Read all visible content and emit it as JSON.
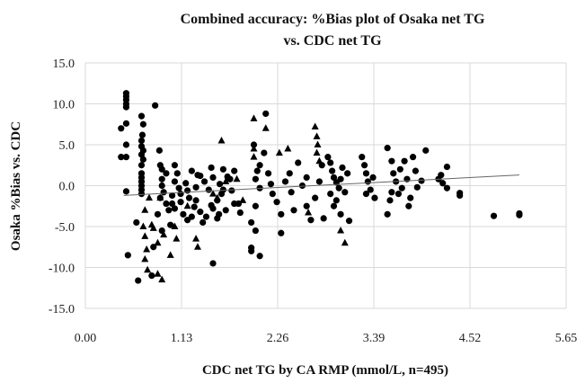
{
  "chart_data": {
    "type": "scatter",
    "title": [
      "Combined accuracy: %Bias plot of Osaka net TG",
      "vs. CDC net TG"
    ],
    "xlabel": "CDC net TG by CA RMP (mmol/L, n=495)",
    "ylabel": "Osaka %Bias vs. CDC",
    "xlim": [
      0,
      5.65
    ],
    "ylim": [
      -15,
      15
    ],
    "xticks": [
      "0.00",
      "1.13",
      "2.26",
      "3.39",
      "4.52",
      "5.65"
    ],
    "yticks": [
      "15.0",
      "10.0",
      "5.0",
      "0.0",
      "-5.0",
      "-10.0",
      "-15.0"
    ],
    "grid": true,
    "trendline": {
      "x": [
        0.45,
        5.1
      ],
      "y": [
        -1.2,
        1.3
      ]
    },
    "series": [
      {
        "name": "circle",
        "marker": "circle",
        "points": [
          [
            0.48,
            11.3
          ],
          [
            0.48,
            10.9
          ],
          [
            0.48,
            10.5
          ],
          [
            0.48,
            10.0
          ],
          [
            0.48,
            9.6
          ],
          [
            0.48,
            7.6
          ],
          [
            0.42,
            7.0
          ],
          [
            0.48,
            5.0
          ],
          [
            0.42,
            3.5
          ],
          [
            0.48,
            3.5
          ],
          [
            0.48,
            -0.7
          ],
          [
            0.5,
            -8.5
          ],
          [
            0.66,
            8.5
          ],
          [
            0.68,
            7.5
          ],
          [
            0.67,
            6.2
          ],
          [
            0.66,
            5.5
          ],
          [
            0.66,
            4.8
          ],
          [
            0.68,
            4.3
          ],
          [
            0.66,
            3.8
          ],
          [
            0.68,
            3.2
          ],
          [
            0.66,
            2.5
          ],
          [
            0.66,
            1.5
          ],
          [
            0.66,
            1.0
          ],
          [
            0.66,
            0.5
          ],
          [
            0.66,
            0.0
          ],
          [
            0.66,
            -0.5
          ],
          [
            0.66,
            -1.0
          ],
          [
            0.6,
            -4.5
          ],
          [
            0.62,
            -11.6
          ],
          [
            0.82,
            9.8
          ],
          [
            0.87,
            4.3
          ],
          [
            0.88,
            2.5
          ],
          [
            0.9,
            2.0
          ],
          [
            0.95,
            1.5
          ],
          [
            0.9,
            0.8
          ],
          [
            0.9,
            0.0
          ],
          [
            0.92,
            -0.8
          ],
          [
            0.88,
            -1.5
          ],
          [
            0.95,
            -2.2
          ],
          [
            0.98,
            -3.0
          ],
          [
            0.85,
            -3.5
          ],
          [
            0.9,
            -5.5
          ],
          [
            1.0,
            -4.8
          ],
          [
            0.8,
            -7.5
          ],
          [
            0.78,
            -11.0
          ],
          [
            1.05,
            2.5
          ],
          [
            1.08,
            1.5
          ],
          [
            1.05,
            0.5
          ],
          [
            1.1,
            -0.3
          ],
          [
            1.02,
            -1.2
          ],
          [
            1.12,
            -2.0
          ],
          [
            1.05,
            -2.8
          ],
          [
            1.15,
            -3.5
          ],
          [
            1.2,
            -4.2
          ],
          [
            1.12,
            -1.0
          ],
          [
            1.18,
            0.3
          ],
          [
            1.25,
            1.8
          ],
          [
            1.22,
            -1.5
          ],
          [
            1.28,
            -2.6
          ],
          [
            1.3,
            -0.2
          ],
          [
            1.35,
            1.2
          ],
          [
            1.4,
            0.5
          ],
          [
            1.35,
            -3.2
          ],
          [
            1.38,
            -4.5
          ],
          [
            1.5,
            -9.5
          ],
          [
            1.48,
            2.2
          ],
          [
            1.5,
            1.0
          ],
          [
            1.45,
            -0.5
          ],
          [
            1.55,
            -1.8
          ],
          [
            1.5,
            -2.8
          ],
          [
            1.58,
            0.2
          ],
          [
            1.6,
            -1.0
          ],
          [
            1.62,
            2.0
          ],
          [
            1.65,
            -3.0
          ],
          [
            1.7,
            0.8
          ],
          [
            1.72,
            -0.6
          ],
          [
            1.75,
            1.8
          ],
          [
            1.8,
            -2.2
          ],
          [
            1.32,
            1.3
          ],
          [
            1.3,
            -1.8
          ],
          [
            1.42,
            -3.8
          ],
          [
            1.48,
            -2.4
          ],
          [
            1.55,
            -4.0
          ],
          [
            1.25,
            -3.8
          ],
          [
            1.2,
            -0.6
          ],
          [
            1.02,
            -2.2
          ],
          [
            1.62,
            -0.5
          ],
          [
            1.67,
            1.1
          ],
          [
            1.57,
            -3.5
          ],
          [
            1.75,
            -2.2
          ],
          [
            1.82,
            -3.3
          ],
          [
            1.95,
            -7.6
          ],
          [
            1.95,
            -8.0
          ],
          [
            2.0,
            -5.5
          ],
          [
            2.05,
            -8.6
          ],
          [
            1.95,
            -4.5
          ],
          [
            2.0,
            -2.5
          ],
          [
            2.05,
            -0.3
          ],
          [
            2.0,
            0.8
          ],
          [
            2.02,
            1.8
          ],
          [
            2.05,
            2.5
          ],
          [
            2.1,
            4.0
          ],
          [
            1.98,
            5.0
          ],
          [
            2.12,
            8.8
          ],
          [
            2.15,
            1.5
          ],
          [
            2.18,
            0.2
          ],
          [
            2.2,
            -1.0
          ],
          [
            2.25,
            -2.0
          ],
          [
            2.3,
            -3.5
          ],
          [
            2.3,
            -5.8
          ],
          [
            2.35,
            0.5
          ],
          [
            2.4,
            1.5
          ],
          [
            2.42,
            -0.8
          ],
          [
            2.45,
            -3.0
          ],
          [
            2.5,
            2.8
          ],
          [
            2.55,
            0.0
          ],
          [
            2.6,
            -2.5
          ],
          [
            2.6,
            1.0
          ],
          [
            2.65,
            -4.2
          ],
          [
            2.7,
            -1.5
          ],
          [
            2.75,
            0.5
          ],
          [
            2.8,
            -4.0
          ],
          [
            2.78,
            2.5
          ],
          [
            2.85,
            3.5
          ],
          [
            2.88,
            2.8
          ],
          [
            2.9,
            1.8
          ],
          [
            2.92,
            1.0
          ],
          [
            2.95,
            0.4
          ],
          [
            2.98,
            -0.3
          ],
          [
            2.88,
            -1.0
          ],
          [
            2.95,
            -1.8
          ],
          [
            2.92,
            -2.5
          ],
          [
            3.0,
            -3.5
          ],
          [
            3.0,
            0.8
          ],
          [
            3.02,
            2.2
          ],
          [
            3.05,
            -0.8
          ],
          [
            3.08,
            1.5
          ],
          [
            3.1,
            -4.3
          ],
          [
            3.25,
            3.5
          ],
          [
            3.28,
            2.5
          ],
          [
            3.3,
            1.5
          ],
          [
            3.32,
            0.5
          ],
          [
            3.35,
            -0.5
          ],
          [
            3.3,
            -1.0
          ],
          [
            3.38,
            1.0
          ],
          [
            3.4,
            -1.5
          ],
          [
            3.55,
            4.6
          ],
          [
            3.6,
            3.0
          ],
          [
            3.62,
            1.5
          ],
          [
            3.65,
            0.5
          ],
          [
            3.6,
            -0.8
          ],
          [
            3.58,
            -1.8
          ],
          [
            3.55,
            -3.5
          ],
          [
            3.68,
            -1.0
          ],
          [
            3.7,
            2.0
          ],
          [
            3.75,
            3.0
          ],
          [
            3.78,
            0.8
          ],
          [
            3.72,
            -0.3
          ],
          [
            3.8,
            -2.5
          ],
          [
            3.85,
            3.5
          ],
          [
            3.88,
            1.8
          ],
          [
            3.9,
            -0.2
          ],
          [
            3.82,
            -1.5
          ],
          [
            3.95,
            0.6
          ],
          [
            4.0,
            4.3
          ],
          [
            4.15,
            0.8
          ],
          [
            4.2,
            0.3
          ],
          [
            4.18,
            1.3
          ],
          [
            4.25,
            -0.3
          ],
          [
            4.4,
            -0.9
          ],
          [
            4.4,
            -1.2
          ],
          [
            4.25,
            2.3
          ],
          [
            4.8,
            -3.7
          ],
          [
            5.1,
            -3.4
          ],
          [
            5.1,
            -3.6
          ]
        ]
      },
      {
        "name": "triangle",
        "marker": "triangle",
        "points": [
          [
            0.75,
            -1.5
          ],
          [
            0.7,
            -3.0
          ],
          [
            0.68,
            -5.0
          ],
          [
            0.7,
            -6.2
          ],
          [
            0.72,
            -7.8
          ],
          [
            0.7,
            -9.0
          ],
          [
            0.73,
            -10.3
          ],
          [
            0.8,
            -5.2
          ],
          [
            0.85,
            -7.0
          ],
          [
            0.78,
            -4.8
          ],
          [
            0.85,
            -10.8
          ],
          [
            0.9,
            -11.5
          ],
          [
            0.92,
            -6.0
          ],
          [
            0.88,
            -1.5
          ],
          [
            1.05,
            -5.0
          ],
          [
            1.07,
            -6.5
          ],
          [
            1.0,
            -8.5
          ],
          [
            1.3,
            -6.5
          ],
          [
            1.32,
            -7.5
          ],
          [
            1.2,
            -2.5
          ],
          [
            1.5,
            -1.0
          ],
          [
            1.6,
            5.5
          ],
          [
            1.65,
            0.5
          ],
          [
            1.78,
            0.8
          ],
          [
            1.98,
            8.2
          ],
          [
            1.98,
            4.5
          ],
          [
            1.98,
            3.5
          ],
          [
            2.12,
            7.0
          ],
          [
            2.28,
            4.0
          ],
          [
            2.38,
            4.5
          ],
          [
            2.62,
            -3.3
          ],
          [
            2.7,
            7.2
          ],
          [
            2.72,
            6.0
          ],
          [
            2.73,
            5.0
          ],
          [
            2.72,
            4.0
          ],
          [
            2.75,
            3.0
          ],
          [
            3.0,
            -5.5
          ],
          [
            3.05,
            -7.0
          ],
          [
            1.55,
            -1.5
          ],
          [
            1.85,
            -1.8
          ]
        ]
      }
    ]
  }
}
